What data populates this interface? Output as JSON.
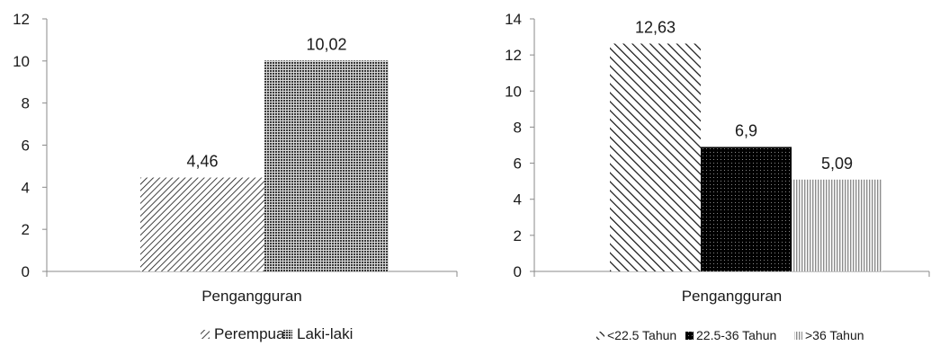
{
  "chart_data": [
    {
      "type": "bar",
      "categories": [
        "Pengangguran"
      ],
      "xlabel": "Pengangguran",
      "ylim": [
        0,
        12
      ],
      "yticks": [
        0,
        2,
        4,
        6,
        8,
        10,
        12
      ],
      "grid": false,
      "legend_position": "bottom",
      "series": [
        {
          "name": "Perempuan",
          "values": [
            4.46
          ],
          "value_label": "4,46",
          "pattern": "hatch-dense",
          "color": "#111111"
        },
        {
          "name": "Laki-laki",
          "values": [
            10.02
          ],
          "value_label": "10,02",
          "pattern": "dots-dense",
          "color": "#4a4a4a"
        }
      ]
    },
    {
      "type": "bar",
      "categories": [
        "Pengangguran"
      ],
      "xlabel": "Pengangguran",
      "ylim": [
        0,
        14
      ],
      "yticks": [
        0,
        2,
        4,
        6,
        8,
        10,
        12,
        14
      ],
      "grid": false,
      "legend_position": "bottom",
      "series": [
        {
          "name": "<22.5 Tahun",
          "values": [
            12.63
          ],
          "value_label": "12,63",
          "pattern": "hatch-wide",
          "color": "#111111"
        },
        {
          "name": "22.5-36 Tahun",
          "values": [
            6.9
          ],
          "value_label": "6,9",
          "pattern": "dots-black",
          "color": "#000000"
        },
        {
          "name": ">36 Tahun",
          "values": [
            5.09
          ],
          "value_label": "5,09",
          "pattern": "vertical-light",
          "color": "#9a9a9a"
        }
      ]
    }
  ]
}
